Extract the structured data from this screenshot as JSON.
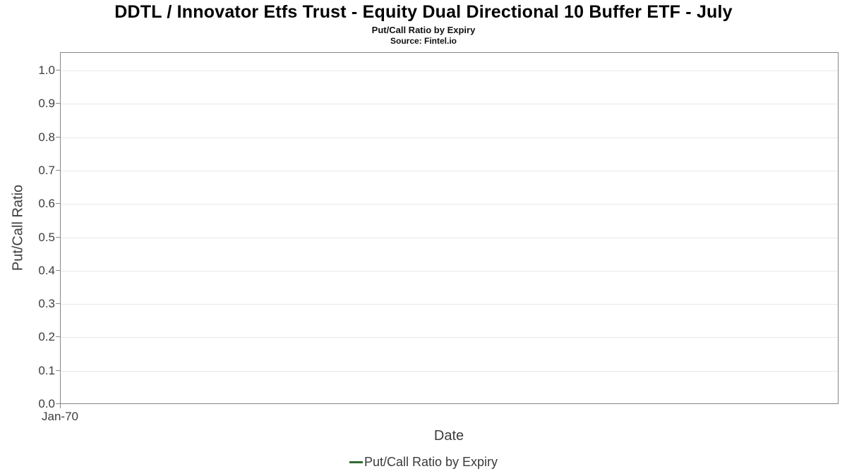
{
  "chart_data": {
    "type": "line",
    "title": "DDTL / Innovator Etfs Trust - Equity Dual Directional 10 Buffer ETF - July",
    "subtitle": "Put/Call Ratio by Expiry",
    "source": "Source: Fintel.io",
    "xlabel": "Date",
    "ylabel": "Put/Call Ratio",
    "x": [],
    "x_tick_labels": [
      "Jan-70"
    ],
    "y_ticks": [
      0.0,
      0.1,
      0.2,
      0.3,
      0.4,
      0.5,
      0.6,
      0.7,
      0.8,
      0.9,
      1.0
    ],
    "y_tick_labels": [
      "0.0",
      "0.1",
      "0.2",
      "0.3",
      "0.4",
      "0.5",
      "0.6",
      "0.7",
      "0.8",
      "0.9",
      "1.0"
    ],
    "ylim": [
      0.0,
      1.055
    ],
    "grid": "horizontal-only",
    "legend_position": "bottom-center",
    "series": [
      {
        "name": "Put/Call Ratio by Expiry",
        "color": "#2d6a34",
        "values": []
      }
    ]
  },
  "colors": {
    "frame": "#858585",
    "gridline": "#e8e8e8",
    "tick_text": "#3d3d3d",
    "series_green": "#2d6a34"
  }
}
